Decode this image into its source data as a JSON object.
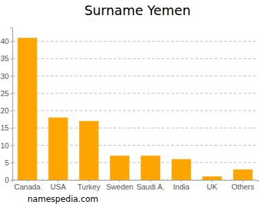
{
  "chart_data": {
    "type": "bar",
    "title": "Surname Yemen",
    "categories": [
      "Canada",
      "USA",
      "Turkey",
      "Sweden",
      "Saudi A.",
      "India",
      "UK",
      "Others"
    ],
    "values": [
      41,
      18,
      17,
      7,
      7,
      6,
      1,
      3
    ],
    "color": "#ffa500",
    "ylim": [
      0,
      44
    ],
    "yticks": [
      0,
      5,
      10,
      15,
      20,
      25,
      30,
      35,
      40
    ],
    "grid": true,
    "source": "namespedia.com"
  }
}
